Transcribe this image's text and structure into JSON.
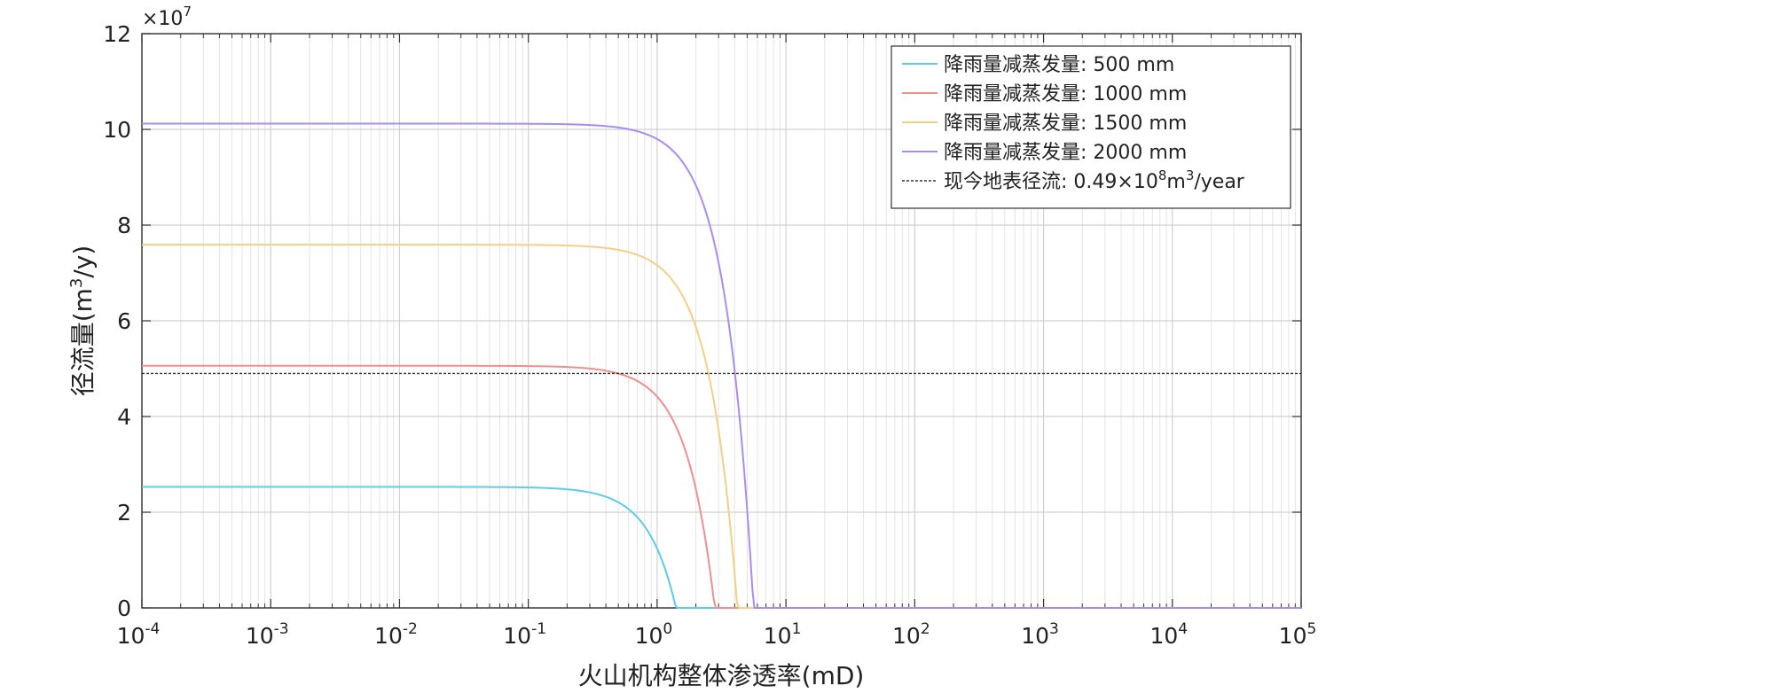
{
  "chart_data": {
    "type": "line",
    "title": "",
    "xlabel": "火山机构整体渗透率(mD)",
    "ylabel_main": "径流量(m",
    "ylabel_sup": "3",
    "ylabel_tail": "/y)",
    "y_exponent_label": "×10",
    "y_exponent_power": "7",
    "x_scale": "log",
    "xlim": [
      0.0001,
      100000
    ],
    "ylim": [
      0,
      12
    ],
    "x_ticks": [
      {
        "value": 0.0001,
        "base": "10",
        "exp": "-4"
      },
      {
        "value": 0.001,
        "base": "10",
        "exp": "-3"
      },
      {
        "value": 0.01,
        "base": "10",
        "exp": "-2"
      },
      {
        "value": 0.1,
        "base": "10",
        "exp": "-1"
      },
      {
        "value": 1,
        "base": "10",
        "exp": "0"
      },
      {
        "value": 10,
        "base": "10",
        "exp": "1"
      },
      {
        "value": 100,
        "base": "10",
        "exp": "2"
      },
      {
        "value": 1000,
        "base": "10",
        "exp": "3"
      },
      {
        "value": 10000,
        "base": "10",
        "exp": "4"
      },
      {
        "value": 100000,
        "base": "10",
        "exp": "5"
      }
    ],
    "y_ticks": [
      {
        "value": 0,
        "label": "0"
      },
      {
        "value": 2,
        "label": "2"
      },
      {
        "value": 4,
        "label": "4"
      },
      {
        "value": 6,
        "label": "6"
      },
      {
        "value": 8,
        "label": "8"
      },
      {
        "value": 10,
        "label": "10"
      },
      {
        "value": 12,
        "label": "12"
      }
    ],
    "grid": true,
    "legend_position": "top-right",
    "series": [
      {
        "name": "降雨量减蒸发量: 500 mm",
        "color": "#5ecbe8",
        "plateau": 2.53,
        "x_zero": 1.4
      },
      {
        "name": "降雨量减蒸发量: 1000 mm",
        "color": "#ef8f8f",
        "plateau": 5.06,
        "x_zero": 2.8
      },
      {
        "name": "降雨量减蒸发量: 1500 mm",
        "color": "#f5cf85",
        "plateau": 7.59,
        "x_zero": 4.2
      },
      {
        "name": "降雨量减蒸发量: 2000 mm",
        "color": "#a88cf0",
        "plateau": 10.12,
        "x_zero": 5.6
      }
    ],
    "reference_line": {
      "y": 4.9,
      "color": "#333333",
      "label_main": "现今地表径流: 0.49×10",
      "label_sup1": "8",
      "label_mid": "m",
      "label_sup2": "3",
      "label_tail": "/year"
    }
  }
}
